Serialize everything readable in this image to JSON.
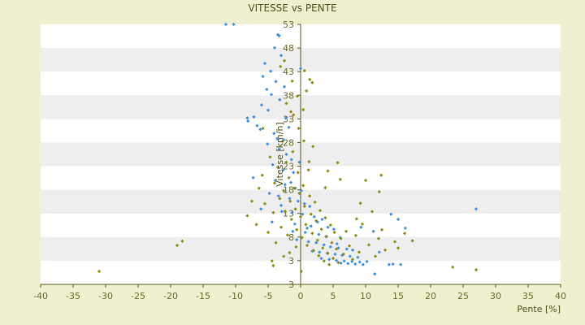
{
  "chart_data": {
    "type": "scatter",
    "title": "VITESSE vs PENTE",
    "xlabel": "Pente [%]",
    "ylabel": "Vitesse [km/h]",
    "xlim": [
      -40,
      40
    ],
    "ylim": [
      3,
      53
    ],
    "x_ticks": [
      "-40",
      "-35",
      "-30",
      "-25",
      "-20",
      "-15",
      "-10",
      "-5",
      "0",
      "5",
      "10",
      "15",
      "20",
      "25",
      "30",
      "35",
      "40"
    ],
    "y_ticks": [
      "53",
      "48",
      "43",
      "38",
      "33",
      "28",
      "23",
      "18",
      "13",
      "8",
      "3",
      "3"
    ],
    "grid": "horizontal alternating bands",
    "legend": "none",
    "colors": {
      "background": "#eef0cf",
      "plot_band_light": "#ffffff",
      "plot_band_dark": "#eeeeee",
      "axis": "#55551a",
      "series_blue": "#3d8fe0",
      "series_olive": "#8c8c14"
    },
    "series": [
      {
        "color": "#3d8fe0",
        "points": [
          [
            -11.5,
            53
          ],
          [
            -10.3,
            53
          ],
          [
            -3.5,
            51
          ],
          [
            -3.3,
            50.8
          ],
          [
            -4,
            48.5
          ],
          [
            -3,
            47
          ],
          [
            -5.5,
            45.5
          ],
          [
            -4.6,
            44
          ],
          [
            -5.8,
            43
          ],
          [
            -3.8,
            42
          ],
          [
            -5.2,
            40.5
          ],
          [
            -2.5,
            41
          ],
          [
            -4.5,
            39.5
          ],
          [
            -3.2,
            38.5
          ],
          [
            -6,
            37.5
          ],
          [
            -5,
            36.5
          ],
          [
            -8.2,
            35
          ],
          [
            -7.2,
            35.2
          ],
          [
            -8.1,
            34.4
          ],
          [
            -6.7,
            33.5
          ],
          [
            -6.2,
            32.8
          ],
          [
            -4.1,
            32
          ],
          [
            -3.6,
            31
          ],
          [
            -5.1,
            30
          ],
          [
            -3.3,
            29
          ],
          [
            -2.2,
            28
          ],
          [
            -1.4,
            27
          ],
          [
            -0.2,
            26.5
          ],
          [
            -4.3,
            26
          ],
          [
            -2.7,
            25
          ],
          [
            -1.1,
            24.5
          ],
          [
            -7.3,
            23.5
          ],
          [
            -3.9,
            23
          ],
          [
            -2.4,
            22.2
          ],
          [
            -0.8,
            21.5
          ],
          [
            0.1,
            21
          ],
          [
            -4.8,
            20.5
          ],
          [
            -3.4,
            20
          ],
          [
            -1.7,
            19.5
          ],
          [
            -0.4,
            19
          ],
          [
            0.6,
            18.5
          ],
          [
            1.4,
            18
          ],
          [
            -6.1,
            17.5
          ],
          [
            -2.9,
            17
          ],
          [
            -1.3,
            16.8
          ],
          [
            0.3,
            16.5
          ],
          [
            2.1,
            16
          ],
          [
            3.3,
            15.5
          ],
          [
            -4.4,
            15
          ],
          [
            -0.9,
            14.6
          ],
          [
            1.6,
            14.2
          ],
          [
            4.2,
            14
          ],
          [
            5.1,
            13.6
          ],
          [
            -1.2,
            13.2
          ],
          [
            0.7,
            13
          ],
          [
            2.8,
            12.6
          ],
          [
            3.9,
            12.2
          ],
          [
            6.1,
            12
          ],
          [
            -0.6,
            11.6
          ],
          [
            1.2,
            11.2
          ],
          [
            2.4,
            11
          ],
          [
            3.6,
            10.6
          ],
          [
            4.6,
            10.2
          ],
          [
            5.8,
            10
          ],
          [
            7.1,
            9.8
          ],
          [
            1.8,
            9.4
          ],
          [
            2.9,
            9.2
          ],
          [
            4.1,
            9
          ],
          [
            5.3,
            8.8
          ],
          [
            6.4,
            8.6
          ],
          [
            7.6,
            8.4
          ],
          [
            8.8,
            8.2
          ],
          [
            3.2,
            8
          ],
          [
            4.4,
            7.8
          ],
          [
            5.5,
            7.6
          ],
          [
            6.7,
            7.5
          ],
          [
            7.9,
            7.4
          ],
          [
            9.1,
            7.3
          ],
          [
            6.2,
            7.1
          ],
          [
            7.3,
            7
          ],
          [
            8.4,
            6.9
          ],
          [
            9.6,
            6.8
          ],
          [
            10.2,
            7.4
          ],
          [
            13.6,
            6.8
          ],
          [
            14.2,
            6.9
          ],
          [
            15.4,
            6.8
          ],
          [
            11.2,
            13.2
          ],
          [
            9.3,
            14
          ],
          [
            13.9,
            16.5
          ],
          [
            16.1,
            13.8
          ],
          [
            27,
            17.5
          ],
          [
            15,
            15.5
          ],
          [
            11.4,
            5
          ],
          [
            12.1,
            9.2
          ],
          [
            8,
            9.6
          ],
          [
            5.6,
            10.8
          ],
          [
            -2.3,
            35
          ],
          [
            -1.8,
            33.2
          ],
          [
            -2.6,
            30.8
          ],
          [
            -1.5,
            22.6
          ],
          [
            -3,
            18.2
          ],
          [
            1,
            13.8
          ],
          [
            2.6,
            15
          ],
          [
            0,
            44.5
          ]
        ]
      },
      {
        "color": "#8c8c14",
        "points": [
          [
            -31,
            5.5
          ],
          [
            -19,
            10.5
          ],
          [
            -18.2,
            11.3
          ],
          [
            -8.2,
            16.2
          ],
          [
            -7.5,
            19
          ],
          [
            -6.8,
            14.5
          ],
          [
            -6.4,
            21.5
          ],
          [
            -5.9,
            24
          ],
          [
            -5.5,
            18.5
          ],
          [
            -5,
            13
          ],
          [
            -4.7,
            27.5
          ],
          [
            -4.2,
            16.8
          ],
          [
            -4,
            22.5
          ],
          [
            -3.8,
            11
          ],
          [
            -3.5,
            25.5
          ],
          [
            -3.2,
            19.5
          ],
          [
            -3,
            14
          ],
          [
            -2.8,
            30.5
          ],
          [
            -2.6,
            21
          ],
          [
            -2.4,
            17
          ],
          [
            -2.2,
            26.5
          ],
          [
            -2,
            12.5
          ],
          [
            -1.8,
            23.5
          ],
          [
            -1.6,
            19
          ],
          [
            -1.4,
            15.5
          ],
          [
            -1.2,
            28.5
          ],
          [
            -1,
            21.5
          ],
          [
            -0.8,
            17.5
          ],
          [
            -0.6,
            13.5
          ],
          [
            -0.4,
            24.5
          ],
          [
            -0.2,
            20.5
          ],
          [
            0,
            16
          ],
          [
            0.2,
            12
          ],
          [
            0.4,
            22
          ],
          [
            0.6,
            18
          ],
          [
            0.8,
            14.5
          ],
          [
            1,
            10.5
          ],
          [
            1.2,
            25
          ],
          [
            1.4,
            20
          ],
          [
            1.6,
            16.5
          ],
          [
            1.8,
            12.8
          ],
          [
            2,
            9.5
          ],
          [
            2.2,
            18.8
          ],
          [
            2.4,
            15.2
          ],
          [
            2.6,
            11.5
          ],
          [
            2.8,
            8.5
          ],
          [
            3,
            17.2
          ],
          [
            3.2,
            13.6
          ],
          [
            3.4,
            10
          ],
          [
            3.6,
            7.5
          ],
          [
            3.8,
            15.8
          ],
          [
            4,
            12.2
          ],
          [
            4.2,
            9
          ],
          [
            4.4,
            6.8
          ],
          [
            4.6,
            14.4
          ],
          [
            4.8,
            11
          ],
          [
            5,
            8
          ],
          [
            5.2,
            13
          ],
          [
            5.5,
            9.8
          ],
          [
            5.8,
            7.2
          ],
          [
            6.2,
            11.8
          ],
          [
            6.6,
            8.8
          ],
          [
            7,
            13.2
          ],
          [
            7.5,
            10.4
          ],
          [
            8,
            7.8
          ],
          [
            8.5,
            12.4
          ],
          [
            9,
            9.2
          ],
          [
            9.5,
            14.6
          ],
          [
            10,
            23
          ],
          [
            10.5,
            10.6
          ],
          [
            11,
            17
          ],
          [
            11.5,
            8.4
          ],
          [
            12,
            11.8
          ],
          [
            12.5,
            13.5
          ],
          [
            13,
            9.6
          ],
          [
            14.5,
            11.2
          ],
          [
            15,
            10
          ],
          [
            16,
            12.8
          ],
          [
            17.2,
            11.4
          ],
          [
            12.1,
            20.8
          ],
          [
            12.4,
            24
          ],
          [
            4.2,
            24.8
          ],
          [
            3.8,
            21.6
          ],
          [
            1.9,
            29.5
          ],
          [
            1.3,
            26.6
          ],
          [
            -0.3,
            33
          ],
          [
            0.5,
            30.6
          ],
          [
            -1.1,
            35.6
          ],
          [
            -0.5,
            39.2
          ],
          [
            0.9,
            40.2
          ],
          [
            1.4,
            42.4
          ],
          [
            1.8,
            41.8
          ],
          [
            0.6,
            44.1
          ],
          [
            -2.5,
            46
          ],
          [
            -3.1,
            44.9
          ],
          [
            -1.3,
            42.1
          ],
          [
            23.4,
            6.3
          ],
          [
            27,
            5.8
          ],
          [
            -4.4,
            7.5
          ],
          [
            -2.6,
            8.4
          ],
          [
            -1.7,
            9.1
          ],
          [
            -0.7,
            10.2
          ],
          [
            0.1,
            5.5
          ],
          [
            -4.2,
            6.6
          ],
          [
            5.7,
            26.4
          ],
          [
            6.1,
            23.2
          ],
          [
            8.6,
            15.6
          ],
          [
            9.2,
            18.6
          ],
          [
            -2.2,
            37.8
          ],
          [
            -1.5,
            36.2
          ],
          [
            0.4,
            36.6
          ],
          [
            -5.8,
            33
          ]
        ]
      }
    ]
  }
}
